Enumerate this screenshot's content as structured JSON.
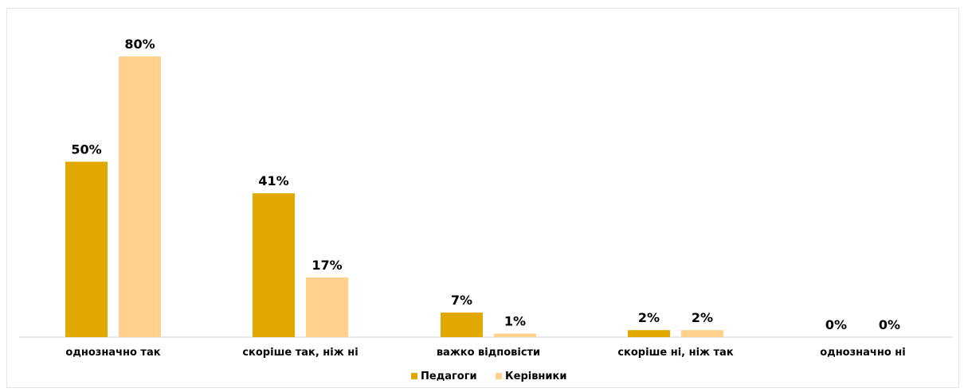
{
  "chart_data": {
    "type": "bar",
    "categories": [
      "однозначно так",
      "скоріше так, ніж ні",
      "важко відповісти",
      "скоріше ні, ніж так",
      "однозначно ні"
    ],
    "series": [
      {
        "name": "Педагоги",
        "values": [
          50,
          41,
          7,
          2,
          0
        ],
        "labels": [
          "50%",
          "41%",
          "7%",
          "2%",
          "0%"
        ]
      },
      {
        "name": "Керівники",
        "values": [
          80,
          17,
          1,
          2,
          0
        ],
        "labels": [
          "80%",
          "17%",
          "1%",
          "2%",
          "0%"
        ]
      }
    ],
    "ylim": [
      0,
      80
    ],
    "grid": false,
    "legend_position": "bottom",
    "colors": [
      "#E1A900",
      "#FFD18A"
    ]
  }
}
